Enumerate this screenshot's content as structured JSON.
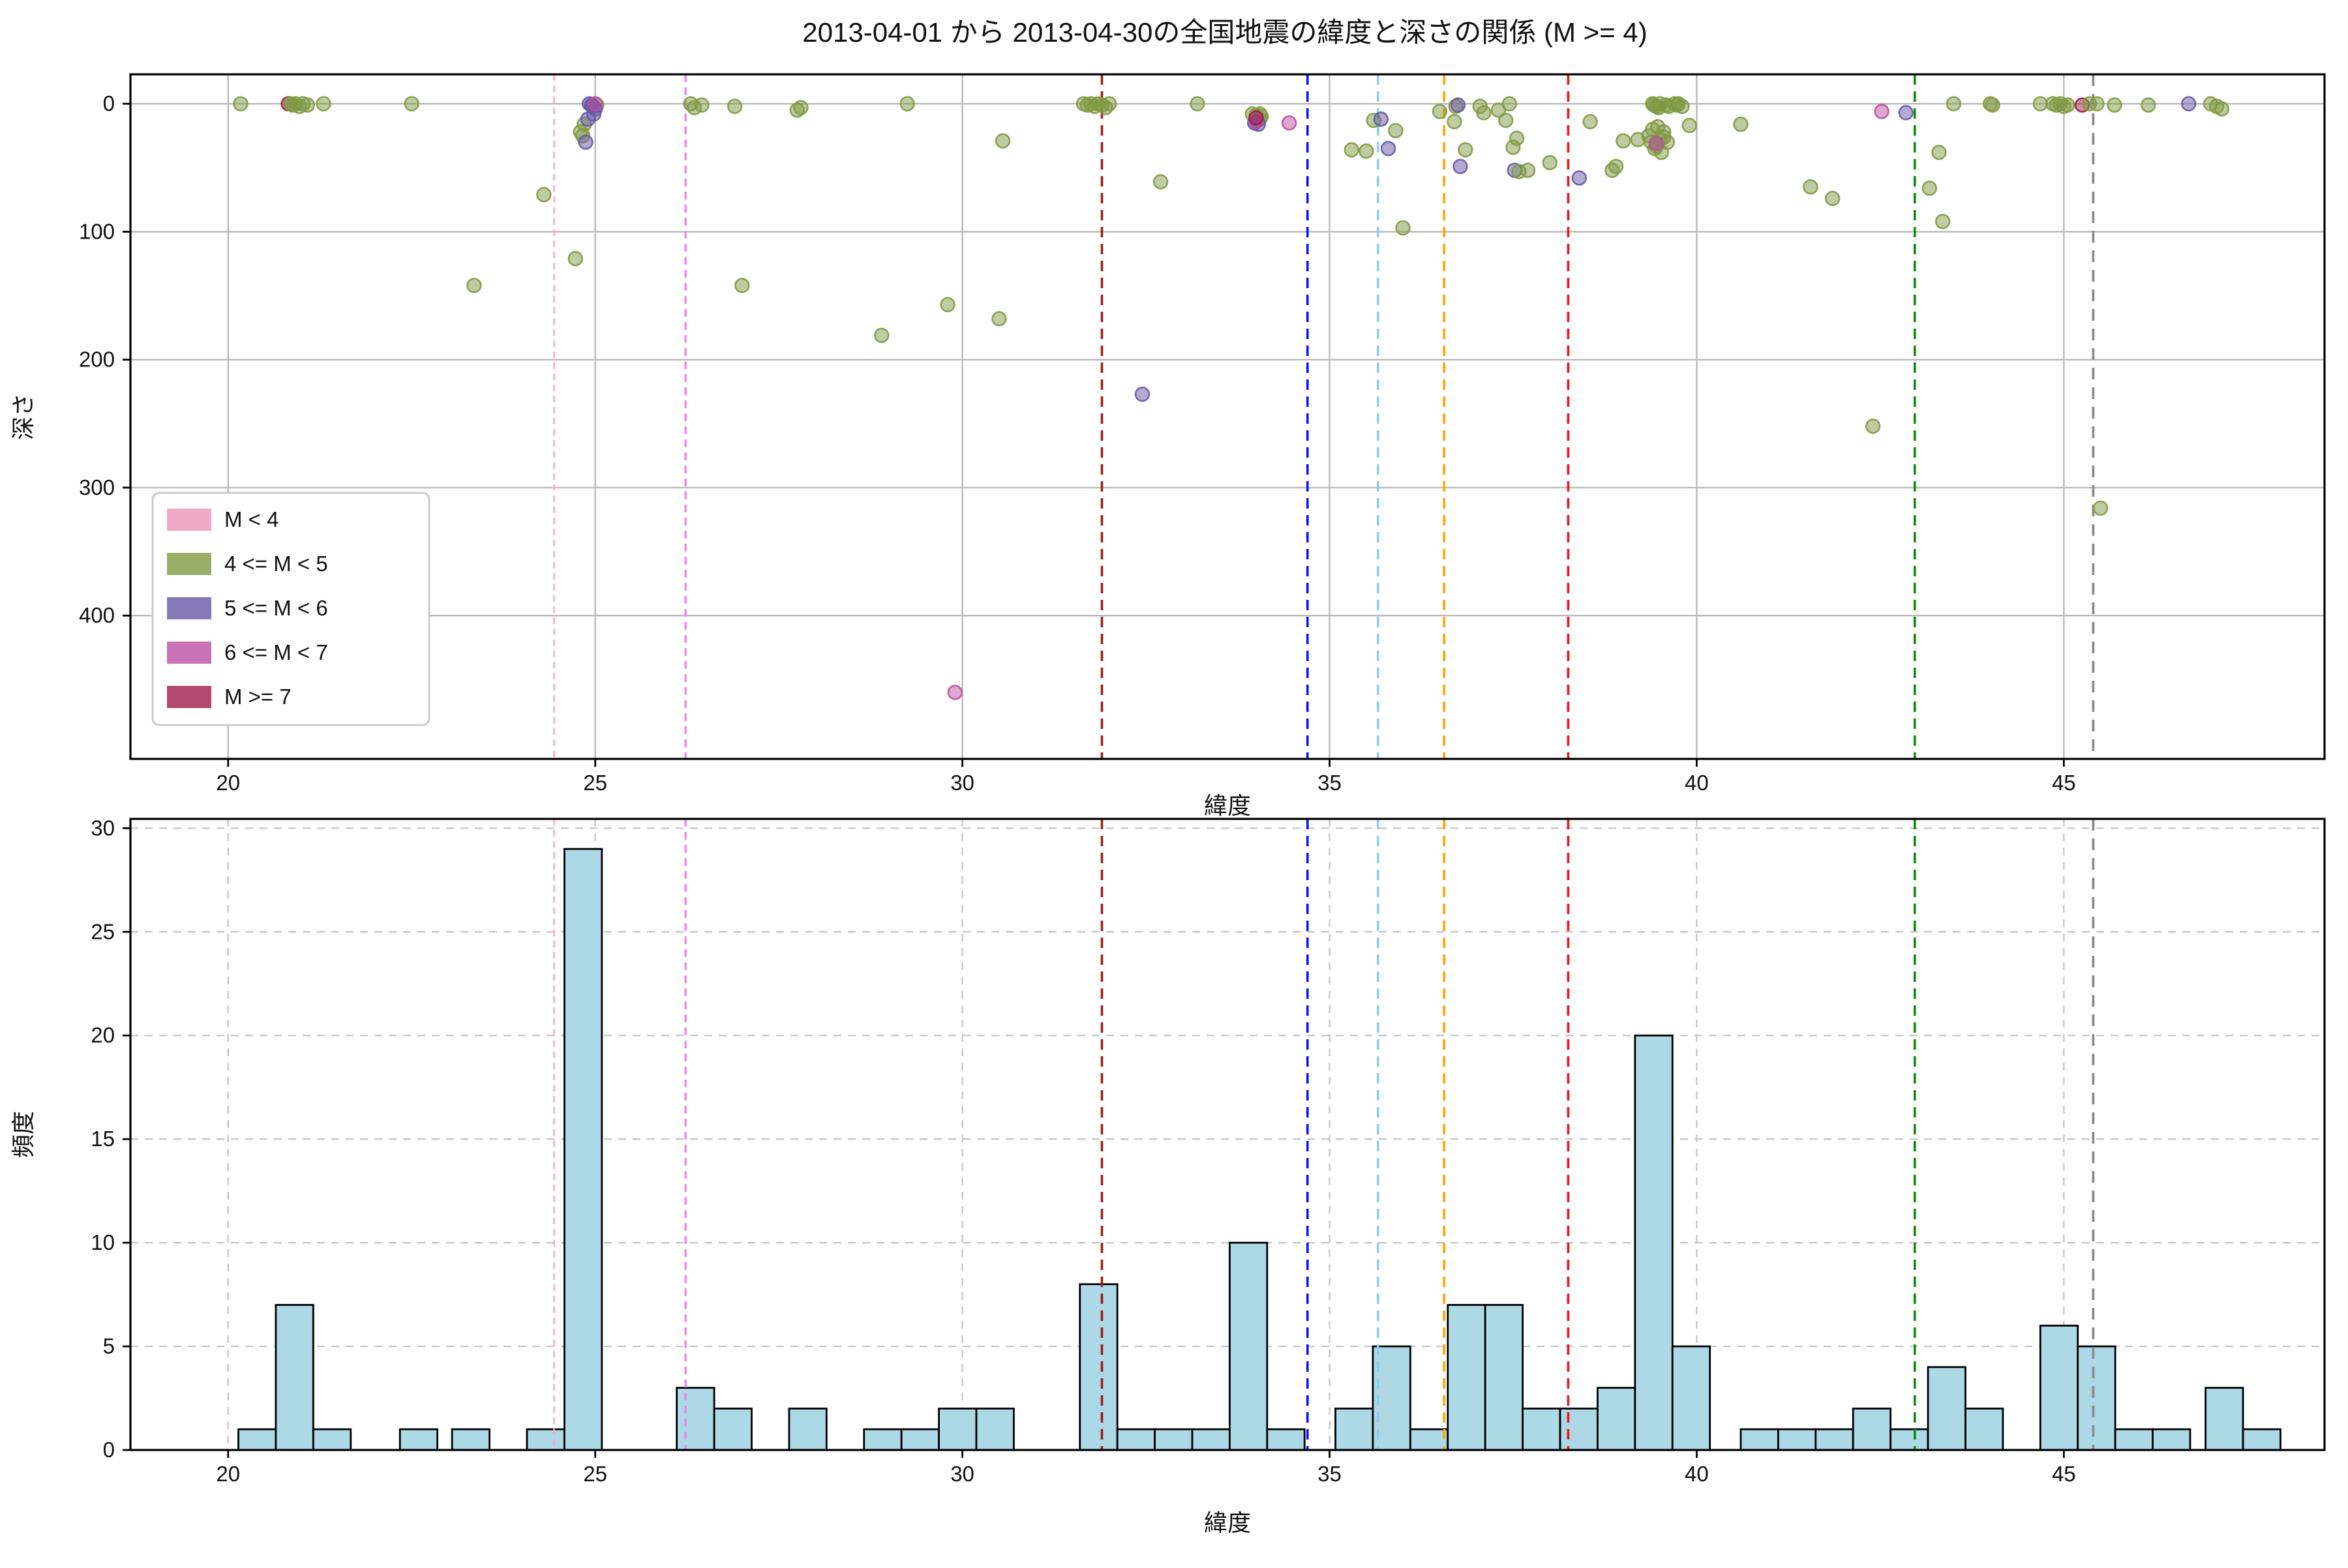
{
  "title": "2013-04-01 から 2013-04-30の全国地震の緯度と深さの関係 (M >= 4)",
  "chart_data": [
    {
      "type": "scatter",
      "xlabel": "緯度",
      "ylabel": "深さ",
      "xlim": [
        18.67,
        48.55
      ],
      "ylim_depth": [
        -23,
        512
      ],
      "xticks": [
        20,
        25,
        30,
        35,
        40,
        45
      ],
      "yticks": [
        0,
        100,
        200,
        300,
        400
      ],
      "grid": "solid",
      "legend_position": "lower-left",
      "legend": [
        {
          "label": "M < 4",
          "color": "#EC93B8"
        },
        {
          "label": "4 <= M < 5",
          "color": "#7F9A44"
        },
        {
          "label": "5 <= M < 6",
          "color": "#6858A6"
        },
        {
          "label": "6 <= M < 7",
          "color": "#BC4FA2"
        },
        {
          "label": "M >= 7",
          "color": "#A01A4B"
        }
      ],
      "class_colors": {
        "g": "#7F9A44",
        "p": "#6858A6",
        "m": "#BC4FA2",
        "r": "#A01A4B"
      },
      "marker_radius": 5.2,
      "marker_alpha": 0.5,
      "vlines": [
        {
          "x": 24.44,
          "color": "#FDA8BF",
          "width": 1.3,
          "dash": "5 3.5"
        },
        {
          "x": 26.23,
          "color": "#EE82EE",
          "width": 1.6,
          "dash": "6 4"
        },
        {
          "x": 31.9,
          "color": "#9E1B1B",
          "width": 1.8,
          "dash": "8 5"
        },
        {
          "x": 34.7,
          "color": "#1010F5",
          "width": 1.8,
          "dash": "8 5"
        },
        {
          "x": 35.66,
          "color": "#8BCEEB",
          "width": 1.8,
          "dash": "8 5"
        },
        {
          "x": 36.56,
          "color": "#FFA500",
          "width": 1.8,
          "dash": "8 5"
        },
        {
          "x": 38.25,
          "color": "#F51414",
          "width": 1.8,
          "dash": "8 5"
        },
        {
          "x": 42.97,
          "color": "#128A12",
          "width": 1.8,
          "dash": "8 5"
        },
        {
          "x": 45.4,
          "color": "#8C8C8C",
          "width": 1.9,
          "dash": "9 6"
        }
      ],
      "points": [
        [
          20.17,
          0,
          "g"
        ],
        [
          20.82,
          0,
          "r"
        ],
        [
          20.85,
          0,
          "g"
        ],
        [
          20.88,
          1,
          "g"
        ],
        [
          20.92,
          0,
          "g"
        ],
        [
          20.97,
          2,
          "g"
        ],
        [
          21.02,
          0,
          "g"
        ],
        [
          21.08,
          1,
          "g"
        ],
        [
          21.3,
          0,
          "g"
        ],
        [
          22.5,
          0,
          "g"
        ],
        [
          23.35,
          142,
          "g"
        ],
        [
          24.3,
          71,
          "g"
        ],
        [
          24.73,
          121,
          "g"
        ],
        [
          24.8,
          22,
          "g"
        ],
        [
          24.83,
          25,
          "g"
        ],
        [
          24.85,
          16,
          "g"
        ],
        [
          25.02,
          1,
          "g"
        ],
        [
          24.87,
          30,
          "p"
        ],
        [
          24.9,
          12,
          "p"
        ],
        [
          24.92,
          0,
          "p"
        ],
        [
          24.95,
          1,
          "p"
        ],
        [
          24.97,
          2,
          "p"
        ],
        [
          25.0,
          4,
          "p"
        ],
        [
          24.98,
          8,
          "p"
        ],
        [
          25.0,
          0,
          "m"
        ],
        [
          26.3,
          0,
          "g"
        ],
        [
          26.35,
          3,
          "g"
        ],
        [
          26.45,
          1,
          "g"
        ],
        [
          26.9,
          2,
          "g"
        ],
        [
          27.0,
          142,
          "g"
        ],
        [
          27.75,
          5,
          "g"
        ],
        [
          27.8,
          3,
          "g"
        ],
        [
          28.9,
          181,
          "g"
        ],
        [
          29.25,
          0,
          "g"
        ],
        [
          29.8,
          157,
          "g"
        ],
        [
          29.9,
          460,
          "m"
        ],
        [
          30.5,
          168,
          "g"
        ],
        [
          30.55,
          29,
          "g"
        ],
        [
          31.65,
          0,
          "g"
        ],
        [
          31.7,
          1,
          "g"
        ],
        [
          31.75,
          0,
          "g"
        ],
        [
          31.8,
          2,
          "g"
        ],
        [
          31.85,
          0,
          "g"
        ],
        [
          31.9,
          1,
          "g"
        ],
        [
          31.95,
          3,
          "g"
        ],
        [
          32.0,
          0,
          "g"
        ],
        [
          32.45,
          227,
          "p"
        ],
        [
          32.7,
          61,
          "g"
        ],
        [
          33.2,
          0,
          "g"
        ],
        [
          33.95,
          8,
          "g"
        ],
        [
          34.0,
          9,
          "g"
        ],
        [
          34.02,
          13,
          "g"
        ],
        [
          34.05,
          8,
          "g"
        ],
        [
          34.05,
          12,
          "g"
        ],
        [
          34.07,
          10,
          "g"
        ],
        [
          33.98,
          15,
          "p"
        ],
        [
          34.03,
          16,
          "p"
        ],
        [
          34.0,
          14,
          "m"
        ],
        [
          34.0,
          11,
          "r"
        ],
        [
          34.45,
          15,
          "m"
        ],
        [
          35.3,
          36,
          "g"
        ],
        [
          35.5,
          37,
          "g"
        ],
        [
          35.6,
          13,
          "g"
        ],
        [
          35.7,
          12,
          "p"
        ],
        [
          35.8,
          35,
          "p"
        ],
        [
          35.9,
          21,
          "g"
        ],
        [
          36.0,
          97,
          "g"
        ],
        [
          36.5,
          6,
          "g"
        ],
        [
          36.7,
          14,
          "g"
        ],
        [
          36.72,
          2,
          "g"
        ],
        [
          36.75,
          1,
          "p"
        ],
        [
          36.78,
          49,
          "p"
        ],
        [
          36.85,
          36,
          "g"
        ],
        [
          37.05,
          2,
          "g"
        ],
        [
          37.1,
          7,
          "g"
        ],
        [
          37.3,
          5,
          "g"
        ],
        [
          37.4,
          13,
          "g"
        ],
        [
          37.45,
          0,
          "g"
        ],
        [
          37.5,
          34,
          "g"
        ],
        [
          37.52,
          52,
          "p"
        ],
        [
          37.55,
          27,
          "g"
        ],
        [
          37.58,
          53,
          "g"
        ],
        [
          37.7,
          52,
          "g"
        ],
        [
          38.0,
          46,
          "g"
        ],
        [
          38.4,
          58,
          "p"
        ],
        [
          38.55,
          14,
          "g"
        ],
        [
          38.85,
          52,
          "g"
        ],
        [
          38.9,
          49,
          "g"
        ],
        [
          39.0,
          29,
          "g"
        ],
        [
          39.2,
          28,
          "g"
        ],
        [
          39.35,
          25,
          "g"
        ],
        [
          39.38,
          30,
          "g"
        ],
        [
          39.4,
          0,
          "g"
        ],
        [
          39.4,
          20,
          "g"
        ],
        [
          39.42,
          1,
          "g"
        ],
        [
          39.43,
          35,
          "g"
        ],
        [
          39.45,
          2,
          "g"
        ],
        [
          39.45,
          33,
          "g"
        ],
        [
          39.47,
          18,
          "g"
        ],
        [
          39.48,
          3,
          "g"
        ],
        [
          39.5,
          0,
          "g"
        ],
        [
          39.5,
          28,
          "g"
        ],
        [
          39.52,
          38,
          "g"
        ],
        [
          39.55,
          22,
          "g"
        ],
        [
          39.55,
          26,
          "g"
        ],
        [
          39.58,
          1,
          "g"
        ],
        [
          39.6,
          30,
          "g"
        ],
        [
          39.62,
          2,
          "g"
        ],
        [
          39.45,
          31,
          "m"
        ],
        [
          39.7,
          0,
          "g"
        ],
        [
          39.73,
          1,
          "g"
        ],
        [
          39.75,
          0,
          "g"
        ],
        [
          39.8,
          2,
          "g"
        ],
        [
          39.9,
          17,
          "g"
        ],
        [
          40.6,
          16,
          "g"
        ],
        [
          41.55,
          65,
          "g"
        ],
        [
          41.85,
          74,
          "g"
        ],
        [
          42.4,
          252,
          "g"
        ],
        [
          42.52,
          6,
          "m"
        ],
        [
          42.85,
          7,
          "p"
        ],
        [
          43.17,
          66,
          "g"
        ],
        [
          43.3,
          38,
          "g"
        ],
        [
          43.35,
          92,
          "g"
        ],
        [
          43.5,
          0,
          "g"
        ],
        [
          44.0,
          0,
          "g"
        ],
        [
          44.03,
          1,
          "g"
        ],
        [
          44.68,
          0,
          "g"
        ],
        [
          44.85,
          0,
          "g"
        ],
        [
          44.9,
          1,
          "g"
        ],
        [
          44.95,
          0,
          "g"
        ],
        [
          45.0,
          2,
          "g"
        ],
        [
          45.05,
          1,
          "g"
        ],
        [
          45.25,
          1,
          "r"
        ],
        [
          45.35,
          0,
          "g"
        ],
        [
          45.45,
          0,
          "g"
        ],
        [
          45.5,
          316,
          "g"
        ],
        [
          45.69,
          1,
          "g"
        ],
        [
          46.15,
          1,
          "g"
        ],
        [
          46.7,
          0,
          "p"
        ],
        [
          47.0,
          0,
          "g"
        ],
        [
          47.08,
          2,
          "g"
        ],
        [
          47.15,
          4,
          "g"
        ]
      ]
    },
    {
      "type": "bar",
      "xlabel": "緯度",
      "ylabel": "頻度",
      "xlim": [
        18.67,
        48.55
      ],
      "ylim": [
        0,
        30.45
      ],
      "xticks": [
        20,
        25,
        30,
        35,
        40,
        45
      ],
      "yticks": [
        0,
        5,
        10,
        15,
        20,
        25,
        30
      ],
      "grid": "dashed",
      "bar_fill": "#ADD8E6",
      "bar_edge": "#000000",
      "bin_width": 0.51,
      "bars": [
        [
          20.14,
          1
        ],
        [
          20.65,
          7
        ],
        [
          21.16,
          1
        ],
        [
          22.34,
          1
        ],
        [
          23.05,
          1
        ],
        [
          24.07,
          1
        ],
        [
          24.58,
          29
        ],
        [
          26.11,
          3
        ],
        [
          26.62,
          2
        ],
        [
          27.64,
          2
        ],
        [
          28.66,
          1
        ],
        [
          29.17,
          1
        ],
        [
          29.68,
          2
        ],
        [
          30.19,
          2
        ],
        [
          31.6,
          8
        ],
        [
          32.11,
          1
        ],
        [
          32.62,
          1
        ],
        [
          33.13,
          1
        ],
        [
          33.64,
          10
        ],
        [
          34.15,
          1
        ],
        [
          35.08,
          2
        ],
        [
          35.59,
          5
        ],
        [
          36.1,
          1
        ],
        [
          36.61,
          7
        ],
        [
          37.12,
          7
        ],
        [
          37.63,
          2
        ],
        [
          38.14,
          2
        ],
        [
          38.65,
          3
        ],
        [
          39.16,
          20
        ],
        [
          39.67,
          5
        ],
        [
          40.6,
          1
        ],
        [
          41.11,
          1
        ],
        [
          41.62,
          1
        ],
        [
          42.13,
          2
        ],
        [
          42.64,
          1
        ],
        [
          43.15,
          4
        ],
        [
          43.66,
          2
        ],
        [
          44.68,
          6
        ],
        [
          45.19,
          5
        ],
        [
          45.7,
          1
        ],
        [
          46.21,
          1
        ],
        [
          46.93,
          3
        ],
        [
          47.44,
          1
        ]
      ],
      "vlines": [
        {
          "x": 24.44,
          "color": "#FDA8BF",
          "width": 1.3,
          "dash": "5 3.5"
        },
        {
          "x": 26.23,
          "color": "#EE82EE",
          "width": 1.6,
          "dash": "6 4"
        },
        {
          "x": 31.9,
          "color": "#9E1B1B",
          "width": 1.8,
          "dash": "8 5"
        },
        {
          "x": 34.7,
          "color": "#1010F5",
          "width": 1.8,
          "dash": "8 5"
        },
        {
          "x": 35.66,
          "color": "#8BCEEB",
          "width": 1.8,
          "dash": "8 5"
        },
        {
          "x": 36.56,
          "color": "#FFA500",
          "width": 1.8,
          "dash": "8 5"
        },
        {
          "x": 38.25,
          "color": "#F51414",
          "width": 1.8,
          "dash": "8 5"
        },
        {
          "x": 42.97,
          "color": "#128A12",
          "width": 1.8,
          "dash": "8 5"
        },
        {
          "x": 45.4,
          "color": "#8C8C8C",
          "width": 1.9,
          "dash": "9 6"
        }
      ]
    }
  ]
}
